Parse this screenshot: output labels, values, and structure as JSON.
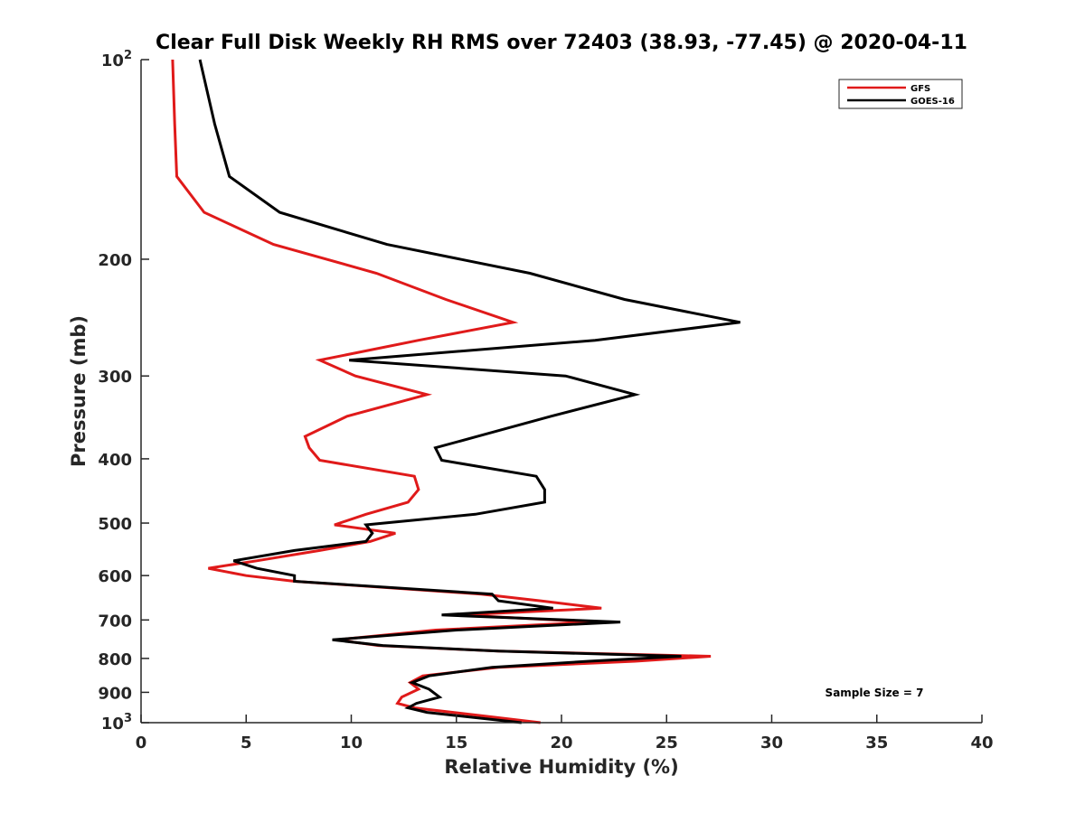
{
  "chart_data": {
    "type": "line",
    "title": "Clear Full Disk Weekly RH RMS over 72403 (38.93, -77.45) @ 2020-04-11",
    "xlabel": "Relative Humidity (%)",
    "ylabel": "Pressure (mb)",
    "xlim": [
      0,
      40
    ],
    "ylim": [
      100,
      1000
    ],
    "y_scale": "log",
    "y_reversed": true,
    "grid": false,
    "legend_position": "top-right",
    "x_ticks": [
      0,
      5,
      10,
      15,
      20,
      25,
      30,
      35,
      40
    ],
    "x_tick_labels": [
      "0",
      "5",
      "10",
      "15",
      "20",
      "25",
      "30",
      "35",
      "40"
    ],
    "y_ticks": [
      100,
      200,
      300,
      400,
      500,
      600,
      700,
      800,
      900,
      1000
    ],
    "y_tick_labels": [
      {
        "base": "10",
        "exp": "2"
      },
      {
        "base": "200",
        "exp": ""
      },
      {
        "base": "300",
        "exp": ""
      },
      {
        "base": "400",
        "exp": ""
      },
      {
        "base": "500",
        "exp": ""
      },
      {
        "base": "600",
        "exp": ""
      },
      {
        "base": "700",
        "exp": ""
      },
      {
        "base": "800",
        "exp": ""
      },
      {
        "base": "900",
        "exp": ""
      },
      {
        "base": "10",
        "exp": "3"
      }
    ],
    "series": [
      {
        "name": "GFS",
        "color": "#e01a1a",
        "points": [
          [
            1.5,
            100
          ],
          [
            1.6,
            125
          ],
          [
            1.7,
            150
          ],
          [
            3.0,
            170
          ],
          [
            6.3,
            190
          ],
          [
            11.2,
            210
          ],
          [
            14.5,
            230
          ],
          [
            17.7,
            249
          ],
          [
            13.2,
            265
          ],
          [
            8.5,
            284
          ],
          [
            10.2,
            300
          ],
          [
            13.6,
            320
          ],
          [
            9.8,
            345
          ],
          [
            7.8,
            370
          ],
          [
            8.0,
            385
          ],
          [
            8.5,
            402
          ],
          [
            13.0,
            425
          ],
          [
            13.2,
            445
          ],
          [
            12.7,
            465
          ],
          [
            10.7,
            485
          ],
          [
            9.2,
            503
          ],
          [
            12.1,
            518
          ],
          [
            10.9,
            533
          ],
          [
            8.5,
            550
          ],
          [
            5.5,
            570
          ],
          [
            3.2,
            585
          ],
          [
            5.0,
            600
          ],
          [
            7.3,
            612
          ],
          [
            16.2,
            640
          ],
          [
            19.0,
            655
          ],
          [
            21.9,
            672
          ],
          [
            15.2,
            688
          ],
          [
            21.5,
            705
          ],
          [
            14.0,
            725
          ],
          [
            9.3,
            750
          ],
          [
            11.3,
            765
          ],
          [
            17.0,
            780
          ],
          [
            27.1,
            794
          ],
          [
            23.5,
            808
          ],
          [
            17.0,
            825
          ],
          [
            13.4,
            850
          ],
          [
            12.8,
            870
          ],
          [
            13.2,
            890
          ],
          [
            12.4,
            915
          ],
          [
            12.2,
            935
          ],
          [
            13.0,
            950
          ],
          [
            19.0,
            1000
          ]
        ]
      },
      {
        "name": "GOES-16",
        "color": "#000000",
        "points": [
          [
            2.8,
            100
          ],
          [
            3.5,
            125
          ],
          [
            4.2,
            150
          ],
          [
            6.6,
            170
          ],
          [
            11.7,
            190
          ],
          [
            18.5,
            210
          ],
          [
            23.0,
            230
          ],
          [
            28.5,
            249
          ],
          [
            21.6,
            265
          ],
          [
            9.9,
            284
          ],
          [
            20.2,
            300
          ],
          [
            23.5,
            320
          ],
          [
            19.5,
            345
          ],
          [
            16.0,
            370
          ],
          [
            14.0,
            385
          ],
          [
            14.3,
            402
          ],
          [
            18.8,
            425
          ],
          [
            19.2,
            445
          ],
          [
            19.2,
            465
          ],
          [
            15.9,
            485
          ],
          [
            10.7,
            503
          ],
          [
            11.0,
            518
          ],
          [
            10.7,
            533
          ],
          [
            7.3,
            550
          ],
          [
            4.4,
            570
          ],
          [
            5.5,
            585
          ],
          [
            7.3,
            600
          ],
          [
            7.3,
            612
          ],
          [
            16.7,
            640
          ],
          [
            17.0,
            655
          ],
          [
            19.6,
            672
          ],
          [
            14.3,
            688
          ],
          [
            22.8,
            705
          ],
          [
            15.0,
            725
          ],
          [
            9.1,
            750
          ],
          [
            11.5,
            765
          ],
          [
            17.0,
            780
          ],
          [
            25.7,
            794
          ],
          [
            21.3,
            808
          ],
          [
            16.7,
            825
          ],
          [
            13.7,
            850
          ],
          [
            12.9,
            870
          ],
          [
            13.7,
            890
          ],
          [
            14.2,
            915
          ],
          [
            13.1,
            935
          ],
          [
            12.7,
            950
          ],
          [
            13.6,
            965
          ],
          [
            18.1,
            1000
          ]
        ]
      }
    ],
    "annotations": [
      {
        "text": "Sample Size = 7",
        "x": 35.7,
        "y": 900
      }
    ]
  }
}
